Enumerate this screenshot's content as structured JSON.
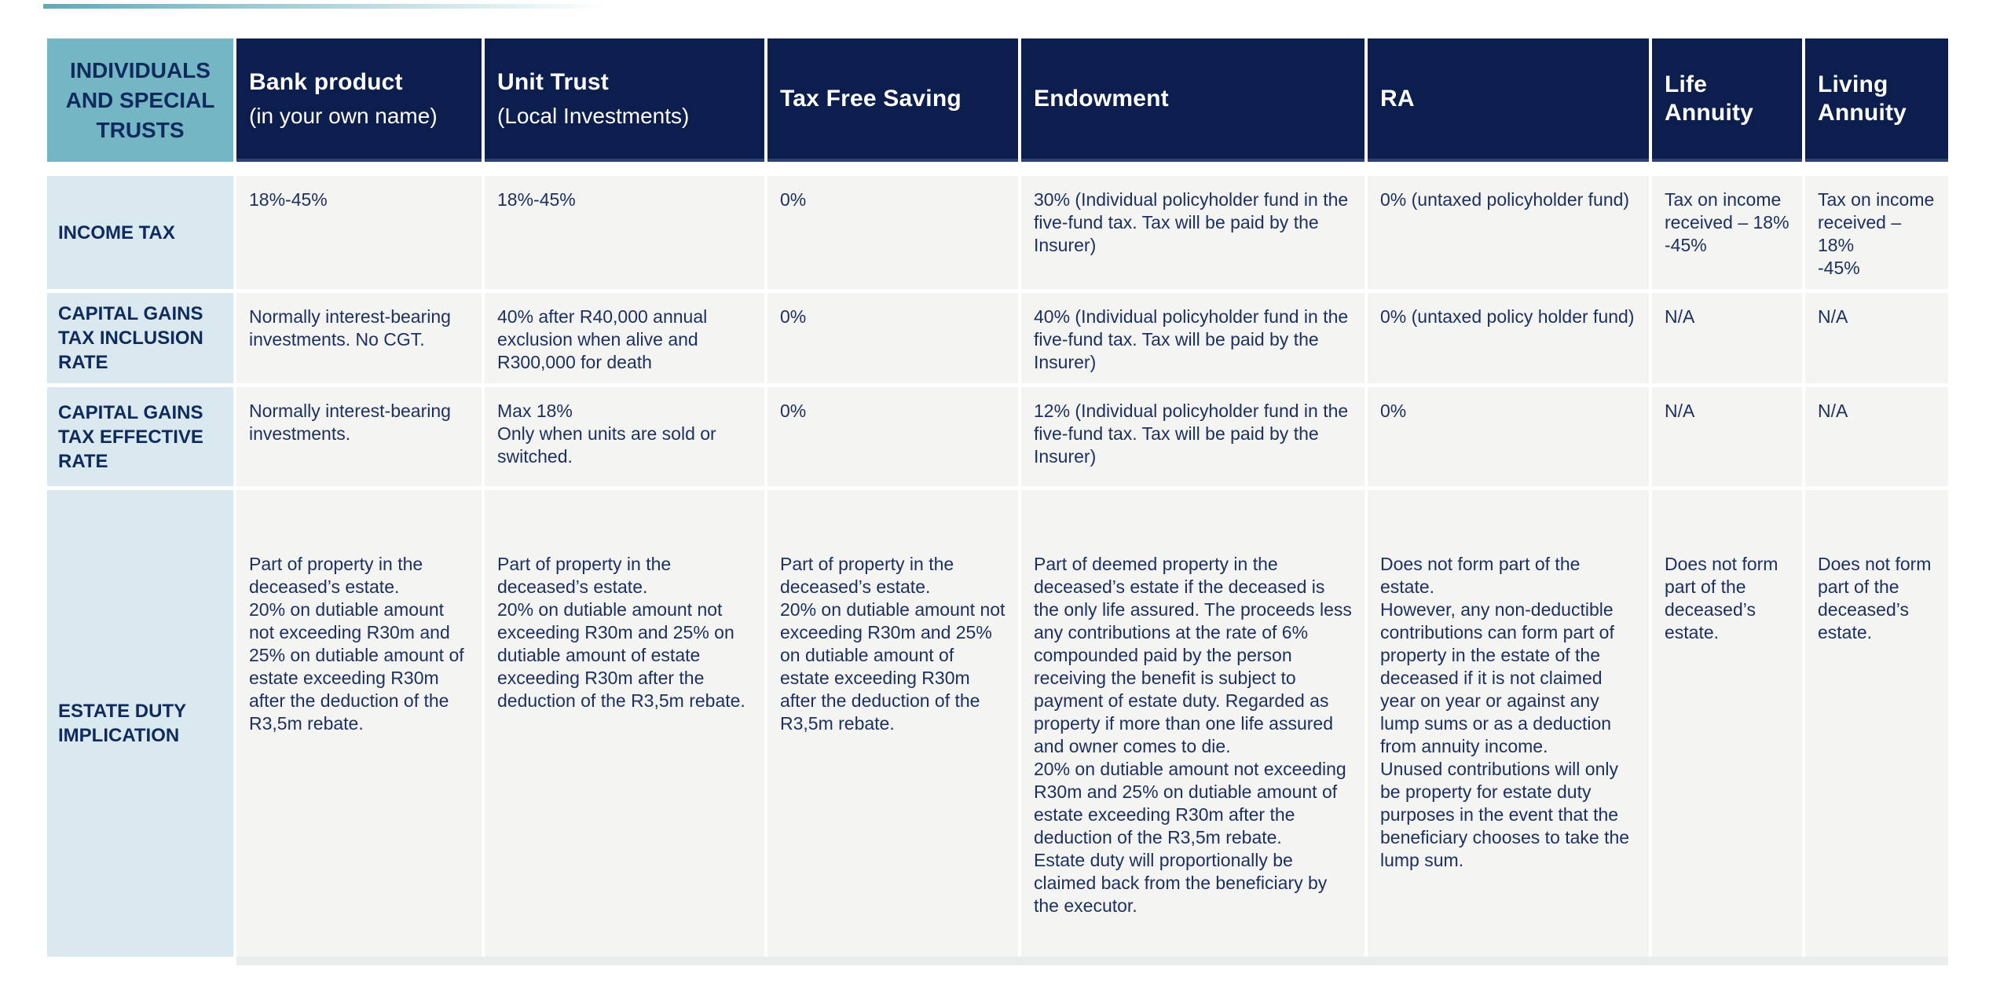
{
  "colors": {
    "header_navy": "#0b1e4e",
    "corner_teal": "#74b6c3",
    "label_blue": "#d9e9ef",
    "cell_gray": "#f4f4f2",
    "text_navy": "#1e3060"
  },
  "table": {
    "corner_label": "INDIVIDUALS AND SPECIAL TRUSTS",
    "columns": [
      {
        "title": "Bank product",
        "subtitle": "(in your own name)"
      },
      {
        "title": "Unit Trust",
        "subtitle": "(Local Investments)"
      },
      {
        "title": "Tax Free Saving",
        "subtitle": ""
      },
      {
        "title": "Endowment",
        "subtitle": ""
      },
      {
        "title": "RA",
        "subtitle": ""
      },
      {
        "title": "Life Annuity",
        "subtitle": ""
      },
      {
        "title": "Living Annuity",
        "subtitle": ""
      }
    ],
    "rows": [
      {
        "label": "INCOME TAX",
        "cells": [
          "18%-45%",
          "18%-45%",
          "0%",
          "30% (Individual policyholder fund in the five-fund tax. Tax will be paid by the Insurer)",
          "0% (untaxed policyholder fund)",
          "Tax on income\nreceived – 18%\n-45%",
          "Tax on income\nreceived – 18%\n-45%"
        ]
      },
      {
        "label": "CAPITAL GAINS TAX INCLUSION RATE",
        "cells": [
          "Normally interest-bearing investments. No CGT.",
          "40% after R40,000 annual exclusion when alive and R300,000 for death",
          "0%",
          "40% (Individual policyholder fund in the five-fund tax. Tax will be paid by the Insurer)",
          "0% (untaxed policy holder fund)",
          "N/A",
          "N/A"
        ]
      },
      {
        "label": "CAPITAL GAINS TAX EFFECTIVE RATE",
        "cells": [
          "Normally interest-bearing investments.",
          "Max 18%\nOnly when units are sold or switched.",
          "0%",
          "12% (Individual policyholder fund in the five-fund tax. Tax will be paid by the Insurer)",
          "0%",
          "N/A",
          "N/A"
        ]
      },
      {
        "label": "ESTATE DUTY IMPLICATION",
        "cells": [
          "Part of property in the deceased’s estate.\n20% on dutiable amount not exceeding R30m and 25% on dutiable amount of estate exceeding R30m after the deduction of the R3,5m rebate.",
          "Part of property in the deceased’s estate.\n20% on dutiable amount not exceeding R30m and 25% on dutiable amount of estate exceeding R30m after the deduction of the R3,5m rebate.",
          "Part of property in the deceased’s estate.\n20% on dutiable amount not exceeding R30m and 25% on dutiable amount of estate exceeding R30m after the deduction of the R3,5m rebate.",
          "Part of deemed property in the deceased’s estate if the deceased is the only life assured. The proceeds less any contributions at the rate of 6% compounded paid by the person receiving the benefit is subject to payment of estate duty. Regarded as property if more than one life assured and owner comes to die.\n20% on dutiable amount not exceeding R30m and 25% on dutiable amount of estate exceeding R30m after the deduction of the R3,5m rebate.\nEstate duty will proportionally be claimed back from the beneficiary by the executor.",
          "Does not form part of the estate.\nHowever, any non-deductible contributions can form part of property in the estate of the deceased if it is not claimed year on year or against any lump sums or as a deduction from annuity income.\nUnused contributions will only be property for estate duty purposes in the event that the beneficiary chooses to take the lump sum.",
          "Does not form part of the deceased’s estate.",
          "Does not form part of the deceased’s estate."
        ]
      }
    ]
  }
}
